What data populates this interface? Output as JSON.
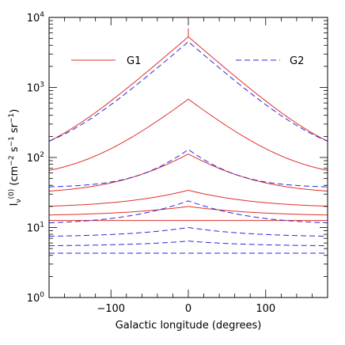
{
  "chart_data": {
    "type": "line",
    "xlabel": "Galactic longitude (degrees)",
    "ylabel": {
      "base": "I",
      "sub": "ν",
      "sup": "(0)",
      "units_open": "  (cm",
      "units_exp1": "−2",
      "units_mid": " s",
      "units_exp2": "−1",
      "units_mid2": " sr",
      "units_exp3": "−1",
      "units_close": ")"
    },
    "xlim": [
      -180,
      180
    ],
    "ylim_log10": [
      0,
      4
    ],
    "y_scale": "log",
    "x_ticks": [
      -100,
      0,
      100
    ],
    "x_tick_labels": [
      "−100",
      "0",
      "100"
    ],
    "y_tick_labels": [
      {
        "base": "10",
        "exp": "0"
      },
      {
        "base": "10",
        "exp": "1"
      },
      {
        "base": "10",
        "exp": "2"
      },
      {
        "base": "10",
        "exp": "3"
      },
      {
        "base": "10",
        "exp": "4"
      }
    ],
    "legend": {
      "placement": "top",
      "entries": [
        {
          "label": "G1",
          "style": "solid",
          "color": "#e0302a"
        },
        {
          "label": "G2",
          "style": "dashed",
          "color": "#2a2ae0"
        }
      ]
    },
    "series": [
      {
        "name": "G1",
        "color": "#e0302a",
        "style": "solid",
        "edge": 75,
        "peak": 5300,
        "width": 45,
        "spike": 7000
      },
      {
        "name": "G1",
        "color": "#e0302a",
        "style": "solid",
        "edge": 48,
        "peak": 680,
        "width": 50
      },
      {
        "name": "G1",
        "color": "#e0302a",
        "style": "solid",
        "edge": 30,
        "peak": 112,
        "width": 55
      },
      {
        "name": "G1",
        "color": "#e0302a",
        "style": "solid",
        "edge": 19,
        "peak": 34,
        "width": 70
      },
      {
        "name": "G1",
        "color": "#e0302a",
        "style": "solid",
        "edge": 14.5,
        "peak": 20,
        "width": 80
      },
      {
        "name": "G1",
        "color": "#e0302a",
        "style": "solid",
        "edge": 12.6,
        "peak": 12.6,
        "width": 80
      },
      {
        "name": "G2",
        "color": "#2a2ae0",
        "style": "dashed",
        "edge": 90,
        "peak": 4500,
        "width": 45
      },
      {
        "name": "G2",
        "color": "#2a2ae0",
        "style": "dashed",
        "edge": 37,
        "peak": 130,
        "width": 40
      },
      {
        "name": "G2",
        "color": "#2a2ae0",
        "style": "dashed",
        "edge": 11,
        "peak": 24,
        "width": 60
      },
      {
        "name": "G2",
        "color": "#2a2ae0",
        "style": "dashed",
        "edge": 7.3,
        "peak": 10,
        "width": 70
      },
      {
        "name": "G2",
        "color": "#2a2ae0",
        "style": "dashed",
        "edge": 5.4,
        "peak": 6.4,
        "width": 75
      },
      {
        "name": "G2",
        "color": "#2a2ae0",
        "style": "dashed",
        "edge": 4.3,
        "peak": 4.3,
        "width": 80
      }
    ]
  }
}
